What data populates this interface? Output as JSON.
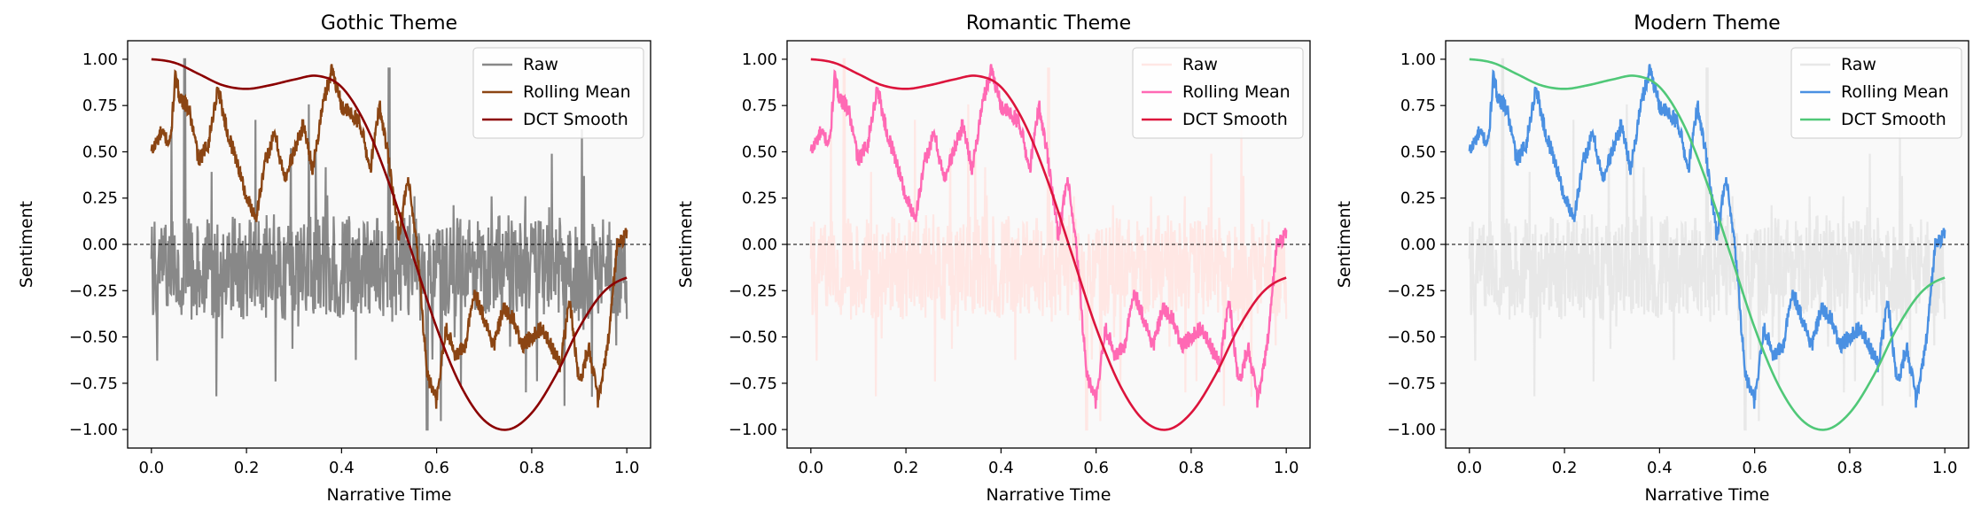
{
  "figure": {
    "background": "#ffffff",
    "panel_background": "#f9f9f9"
  },
  "chart_data": [
    {
      "type": "line",
      "title": "Gothic Theme",
      "xlabel": "Narrative Time",
      "ylabel": "Sentiment",
      "xlim": [
        -0.05,
        1.05
      ],
      "ylim": [
        -1.1,
        1.1
      ],
      "xticks": [
        0.0,
        0.2,
        0.4,
        0.6,
        0.8,
        1.0
      ],
      "xtick_labels": [
        "0.0",
        "0.2",
        "0.4",
        "0.6",
        "0.8",
        "1.0"
      ],
      "yticks": [
        -1.0,
        -0.75,
        -0.5,
        -0.25,
        0.0,
        0.25,
        0.5,
        0.75,
        1.0
      ],
      "ytick_labels": [
        "−1.00",
        "−0.75",
        "−0.50",
        "−0.25",
        "0.00",
        "0.25",
        "0.50",
        "0.75",
        "1.00"
      ],
      "legend_position": "upper-right",
      "reference_line": {
        "y": 0,
        "style": "dashed",
        "color": "#000000"
      },
      "series": [
        {
          "name": "Raw",
          "color": "#888888",
          "opacity": 1.0,
          "description": "noisy raw sentiment, roughly -0.55 to 0.25 with spikes up to 1.0 and down to -1.0",
          "x": [
            0.0,
            0.05,
            0.1,
            0.15,
            0.2,
            0.25,
            0.3,
            0.35,
            0.4,
            0.45,
            0.5,
            0.55,
            0.58,
            0.6,
            0.65,
            0.7,
            0.75,
            0.8,
            0.85,
            0.9,
            0.95,
            1.0
          ],
          "y": [
            -0.1,
            0.2,
            -0.3,
            0.1,
            -0.2,
            0.15,
            -0.35,
            0.2,
            -0.1,
            0.25,
            -0.3,
            0.1,
            -1.0,
            -0.4,
            0.1,
            -0.3,
            0.2,
            -0.25,
            0.15,
            -0.3,
            0.3,
            -0.1
          ]
        },
        {
          "name": "Rolling Mean",
          "color": "#8b4513",
          "x": [
            0.0,
            0.02,
            0.04,
            0.05,
            0.06,
            0.08,
            0.1,
            0.12,
            0.14,
            0.16,
            0.18,
            0.2,
            0.22,
            0.24,
            0.26,
            0.28,
            0.3,
            0.32,
            0.34,
            0.36,
            0.38,
            0.4,
            0.42,
            0.44,
            0.46,
            0.48,
            0.5,
            0.52,
            0.54,
            0.56,
            0.58,
            0.6,
            0.62,
            0.64,
            0.66,
            0.68,
            0.7,
            0.72,
            0.74,
            0.76,
            0.78,
            0.8,
            0.82,
            0.84,
            0.86,
            0.88,
            0.9,
            0.92,
            0.94,
            0.96,
            0.98,
            1.0
          ],
          "y": [
            0.5,
            0.6,
            0.55,
            0.9,
            0.8,
            0.72,
            0.45,
            0.55,
            0.85,
            0.6,
            0.45,
            0.25,
            0.15,
            0.45,
            0.6,
            0.35,
            0.5,
            0.65,
            0.4,
            0.75,
            0.95,
            0.75,
            0.7,
            0.65,
            0.4,
            0.75,
            0.45,
            0.05,
            0.35,
            -0.05,
            -0.7,
            -0.85,
            -0.45,
            -0.6,
            -0.55,
            -0.25,
            -0.4,
            -0.55,
            -0.35,
            -0.4,
            -0.55,
            -0.5,
            -0.45,
            -0.55,
            -0.65,
            -0.3,
            -0.75,
            -0.55,
            -0.85,
            -0.55,
            0.0,
            0.05
          ]
        },
        {
          "name": "DCT Smooth",
          "color": "#8b0000",
          "x": [
            0.0,
            0.05,
            0.1,
            0.15,
            0.2,
            0.25,
            0.3,
            0.35,
            0.4,
            0.45,
            0.5,
            0.55,
            0.6,
            0.65,
            0.7,
            0.75,
            0.8,
            0.85,
            0.9,
            0.95,
            1.0
          ],
          "y": [
            1.0,
            0.98,
            0.92,
            0.86,
            0.84,
            0.86,
            0.89,
            0.91,
            0.85,
            0.65,
            0.33,
            -0.06,
            -0.45,
            -0.76,
            -0.95,
            -1.0,
            -0.91,
            -0.71,
            -0.45,
            -0.26,
            -0.18
          ]
        }
      ]
    },
    {
      "type": "line",
      "title": "Romantic Theme",
      "xlabel": "Narrative Time",
      "ylabel": "Sentiment",
      "xlim": [
        -0.05,
        1.05
      ],
      "ylim": [
        -1.1,
        1.1
      ],
      "xticks": [
        0.0,
        0.2,
        0.4,
        0.6,
        0.8,
        1.0
      ],
      "xtick_labels": [
        "0.0",
        "0.2",
        "0.4",
        "0.6",
        "0.8",
        "1.0"
      ],
      "yticks": [
        -1.0,
        -0.75,
        -0.5,
        -0.25,
        0.0,
        0.25,
        0.5,
        0.75,
        1.0
      ],
      "ytick_labels": [
        "−1.00",
        "−0.75",
        "−0.50",
        "−0.25",
        "0.00",
        "0.25",
        "0.50",
        "0.75",
        "1.00"
      ],
      "legend_position": "upper-right",
      "reference_line": {
        "y": 0,
        "style": "dashed",
        "color": "#000000"
      },
      "series": [
        {
          "name": "Raw",
          "color": "#ffe4e1",
          "opacity": 0.9,
          "x": [
            0.0,
            0.05,
            0.1,
            0.15,
            0.2,
            0.25,
            0.3,
            0.35,
            0.4,
            0.45,
            0.5,
            0.55,
            0.58,
            0.6,
            0.65,
            0.7,
            0.75,
            0.8,
            0.85,
            0.9,
            0.95,
            1.0
          ],
          "y": [
            -0.1,
            0.2,
            -0.3,
            0.1,
            -0.2,
            0.15,
            -0.35,
            0.2,
            -0.1,
            0.25,
            -0.3,
            0.1,
            -1.0,
            -0.4,
            0.1,
            -0.3,
            0.2,
            -0.25,
            0.15,
            -0.3,
            0.3,
            -0.1
          ]
        },
        {
          "name": "Rolling Mean",
          "color": "#ff69b4",
          "x": [
            0.0,
            0.02,
            0.04,
            0.05,
            0.06,
            0.08,
            0.1,
            0.12,
            0.14,
            0.16,
            0.18,
            0.2,
            0.22,
            0.24,
            0.26,
            0.28,
            0.3,
            0.32,
            0.34,
            0.36,
            0.38,
            0.4,
            0.42,
            0.44,
            0.46,
            0.48,
            0.5,
            0.52,
            0.54,
            0.56,
            0.58,
            0.6,
            0.62,
            0.64,
            0.66,
            0.68,
            0.7,
            0.72,
            0.74,
            0.76,
            0.78,
            0.8,
            0.82,
            0.84,
            0.86,
            0.88,
            0.9,
            0.92,
            0.94,
            0.96,
            0.98,
            1.0
          ],
          "y": [
            0.5,
            0.6,
            0.55,
            0.9,
            0.8,
            0.72,
            0.45,
            0.55,
            0.85,
            0.6,
            0.45,
            0.25,
            0.15,
            0.45,
            0.6,
            0.35,
            0.5,
            0.65,
            0.4,
            0.75,
            0.95,
            0.75,
            0.7,
            0.65,
            0.4,
            0.75,
            0.45,
            0.05,
            0.35,
            -0.05,
            -0.7,
            -0.85,
            -0.45,
            -0.6,
            -0.55,
            -0.25,
            -0.4,
            -0.55,
            -0.35,
            -0.4,
            -0.55,
            -0.5,
            -0.45,
            -0.55,
            -0.65,
            -0.3,
            -0.75,
            -0.55,
            -0.85,
            -0.55,
            0.0,
            0.05
          ]
        },
        {
          "name": "DCT Smooth",
          "color": "#dc143c",
          "x": [
            0.0,
            0.05,
            0.1,
            0.15,
            0.2,
            0.25,
            0.3,
            0.35,
            0.4,
            0.45,
            0.5,
            0.55,
            0.6,
            0.65,
            0.7,
            0.75,
            0.8,
            0.85,
            0.9,
            0.95,
            1.0
          ],
          "y": [
            1.0,
            0.98,
            0.92,
            0.86,
            0.84,
            0.86,
            0.89,
            0.91,
            0.85,
            0.65,
            0.33,
            -0.06,
            -0.45,
            -0.76,
            -0.95,
            -1.0,
            -0.91,
            -0.71,
            -0.45,
            -0.26,
            -0.18
          ]
        }
      ]
    },
    {
      "type": "line",
      "title": "Modern Theme",
      "xlabel": "Narrative Time",
      "ylabel": "Sentiment",
      "xlim": [
        -0.05,
        1.05
      ],
      "ylim": [
        -1.1,
        1.1
      ],
      "xticks": [
        0.0,
        0.2,
        0.4,
        0.6,
        0.8,
        1.0
      ],
      "xtick_labels": [
        "0.0",
        "0.2",
        "0.4",
        "0.6",
        "0.8",
        "1.0"
      ],
      "yticks": [
        -1.0,
        -0.75,
        -0.5,
        -0.25,
        0.0,
        0.25,
        0.5,
        0.75,
        1.0
      ],
      "ytick_labels": [
        "−1.00",
        "−0.75",
        "−0.50",
        "−0.25",
        "0.00",
        "0.25",
        "0.50",
        "0.75",
        "1.00"
      ],
      "legend_position": "upper-right",
      "reference_line": {
        "y": 0,
        "style": "dashed",
        "color": "#000000"
      },
      "series": [
        {
          "name": "Raw",
          "color": "#e6e6e6",
          "opacity": 0.9,
          "x": [
            0.0,
            0.05,
            0.1,
            0.15,
            0.2,
            0.25,
            0.3,
            0.35,
            0.4,
            0.45,
            0.5,
            0.55,
            0.58,
            0.6,
            0.65,
            0.7,
            0.75,
            0.8,
            0.85,
            0.9,
            0.95,
            1.0
          ],
          "y": [
            -0.1,
            0.2,
            -0.3,
            0.1,
            -0.2,
            0.15,
            -0.35,
            0.2,
            -0.1,
            0.25,
            -0.3,
            0.1,
            -1.0,
            -0.4,
            0.1,
            -0.3,
            0.2,
            -0.25,
            0.15,
            -0.3,
            0.3,
            -0.1
          ]
        },
        {
          "name": "Rolling Mean",
          "color": "#4a90e2",
          "x": [
            0.0,
            0.02,
            0.04,
            0.05,
            0.06,
            0.08,
            0.1,
            0.12,
            0.14,
            0.16,
            0.18,
            0.2,
            0.22,
            0.24,
            0.26,
            0.28,
            0.3,
            0.32,
            0.34,
            0.36,
            0.38,
            0.4,
            0.42,
            0.44,
            0.46,
            0.48,
            0.5,
            0.52,
            0.54,
            0.56,
            0.58,
            0.6,
            0.62,
            0.64,
            0.66,
            0.68,
            0.7,
            0.72,
            0.74,
            0.76,
            0.78,
            0.8,
            0.82,
            0.84,
            0.86,
            0.88,
            0.9,
            0.92,
            0.94,
            0.96,
            0.98,
            1.0
          ],
          "y": [
            0.5,
            0.6,
            0.55,
            0.9,
            0.8,
            0.72,
            0.45,
            0.55,
            0.85,
            0.6,
            0.45,
            0.25,
            0.15,
            0.45,
            0.6,
            0.35,
            0.5,
            0.65,
            0.4,
            0.75,
            0.95,
            0.75,
            0.7,
            0.65,
            0.4,
            0.75,
            0.45,
            0.05,
            0.35,
            -0.05,
            -0.7,
            -0.85,
            -0.45,
            -0.6,
            -0.55,
            -0.25,
            -0.4,
            -0.55,
            -0.35,
            -0.4,
            -0.55,
            -0.5,
            -0.45,
            -0.55,
            -0.65,
            -0.3,
            -0.75,
            -0.55,
            -0.85,
            -0.55,
            0.0,
            0.05
          ]
        },
        {
          "name": "DCT Smooth",
          "color": "#50c878",
          "x": [
            0.0,
            0.05,
            0.1,
            0.15,
            0.2,
            0.25,
            0.3,
            0.35,
            0.4,
            0.45,
            0.5,
            0.55,
            0.6,
            0.65,
            0.7,
            0.75,
            0.8,
            0.85,
            0.9,
            0.95,
            1.0
          ],
          "y": [
            1.0,
            0.98,
            0.92,
            0.86,
            0.84,
            0.86,
            0.89,
            0.91,
            0.85,
            0.65,
            0.33,
            -0.06,
            -0.45,
            -0.76,
            -0.95,
            -1.0,
            -0.91,
            -0.71,
            -0.45,
            -0.26,
            -0.18
          ]
        }
      ]
    }
  ]
}
